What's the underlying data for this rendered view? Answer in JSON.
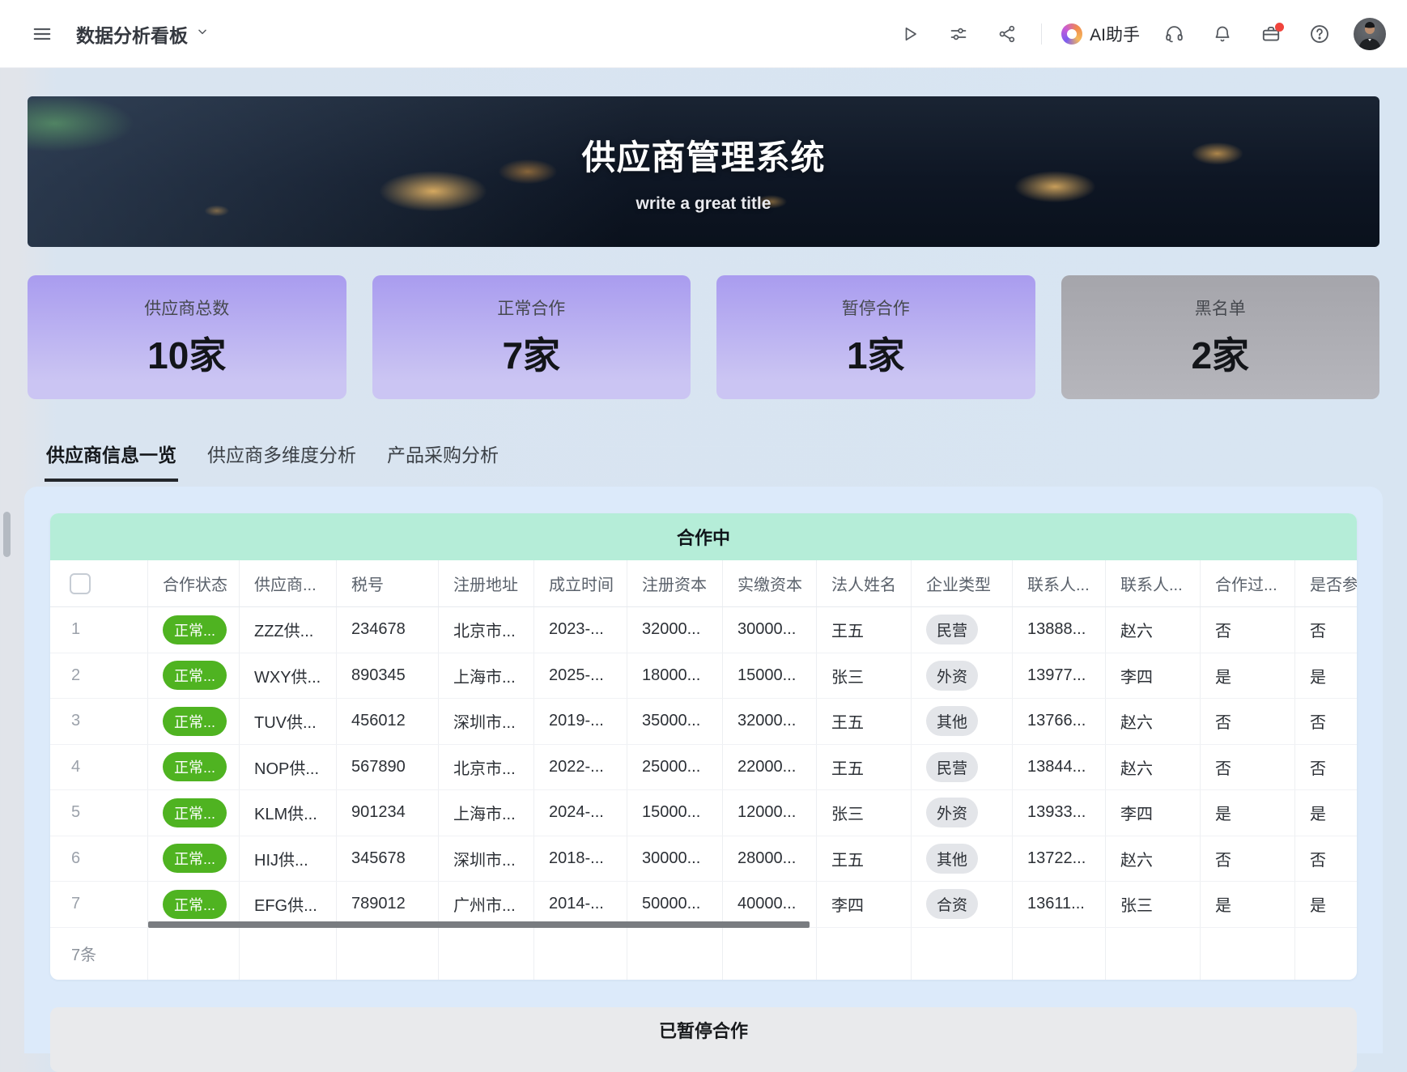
{
  "topbar": {
    "title": "数据分析看板",
    "ai_label": "AI助手",
    "icons": [
      "menu-icon",
      "chevron-down-icon",
      "play-icon",
      "adjustments-icon",
      "share-icon",
      "ai-logo-icon",
      "headset-icon",
      "bell-icon",
      "briefcase-icon",
      "help-icon",
      "user-avatar"
    ]
  },
  "banner": {
    "title": "供应商管理系统",
    "subtitle": "write a great title"
  },
  "stats": {
    "cards": [
      {
        "label": "供应商总数",
        "value": "10家",
        "theme": "purple"
      },
      {
        "label": "正常合作",
        "value": "7家",
        "theme": "purple"
      },
      {
        "label": "暂停合作",
        "value": "1家",
        "theme": "purple"
      },
      {
        "label": "黑名单",
        "value": "2家",
        "theme": "gray"
      }
    ]
  },
  "tabs": [
    {
      "label": "供应商信息一览",
      "active": true
    },
    {
      "label": "供应商多维度分析",
      "active": false
    },
    {
      "label": "产品采购分析",
      "active": false
    }
  ],
  "cooperating_table": {
    "section_title": "合作中",
    "columns": [
      "",
      "合作状态",
      "供应商...",
      "税号",
      "注册地址",
      "成立时间",
      "注册资本",
      "实缴资本",
      "法人姓名",
      "企业类型",
      "联系人...",
      "联系人...",
      "合作过...",
      "是否参..."
    ],
    "rows": [
      {
        "num": "1",
        "status": "正常...",
        "supplier": "ZZZ供...",
        "tax_id": "234678",
        "address": "北京市...",
        "founded": "2023-...",
        "reg_capital": "32000...",
        "paid_capital": "30000...",
        "legal_person": "王五",
        "company_type": "民营",
        "contact_phone": "13888...",
        "contact_name": "赵六",
        "history": "否",
        "participate": "否"
      },
      {
        "num": "2",
        "status": "正常...",
        "supplier": "WXY供...",
        "tax_id": "890345",
        "address": "上海市...",
        "founded": "2025-...",
        "reg_capital": "18000...",
        "paid_capital": "15000...",
        "legal_person": "张三",
        "company_type": "外资",
        "contact_phone": "13977...",
        "contact_name": "李四",
        "history": "是",
        "participate": "是"
      },
      {
        "num": "3",
        "status": "正常...",
        "supplier": "TUV供...",
        "tax_id": "456012",
        "address": "深圳市...",
        "founded": "2019-...",
        "reg_capital": "35000...",
        "paid_capital": "32000...",
        "legal_person": "王五",
        "company_type": "其他",
        "contact_phone": "13766...",
        "contact_name": "赵六",
        "history": "否",
        "participate": "否"
      },
      {
        "num": "4",
        "status": "正常...",
        "supplier": "NOP供...",
        "tax_id": "567890",
        "address": "北京市...",
        "founded": "2022-...",
        "reg_capital": "25000...",
        "paid_capital": "22000...",
        "legal_person": "王五",
        "company_type": "民营",
        "contact_phone": "13844...",
        "contact_name": "赵六",
        "history": "否",
        "participate": "否"
      },
      {
        "num": "5",
        "status": "正常...",
        "supplier": "KLM供...",
        "tax_id": "901234",
        "address": "上海市...",
        "founded": "2024-...",
        "reg_capital": "15000...",
        "paid_capital": "12000...",
        "legal_person": "张三",
        "company_type": "外资",
        "contact_phone": "13933...",
        "contact_name": "李四",
        "history": "是",
        "participate": "是"
      },
      {
        "num": "6",
        "status": "正常...",
        "supplier": "HIJ供...",
        "tax_id": "345678",
        "address": "深圳市...",
        "founded": "2018-...",
        "reg_capital": "30000...",
        "paid_capital": "28000...",
        "legal_person": "王五",
        "company_type": "其他",
        "contact_phone": "13722...",
        "contact_name": "赵六",
        "history": "否",
        "participate": "否"
      },
      {
        "num": "7",
        "status": "正常...",
        "supplier": "EFG供...",
        "tax_id": "789012",
        "address": "广州市...",
        "founded": "2014-...",
        "reg_capital": "50000...",
        "paid_capital": "40000...",
        "legal_person": "李四",
        "company_type": "合资",
        "contact_phone": "13611...",
        "contact_name": "张三",
        "history": "是",
        "participate": "是"
      }
    ],
    "footer_count": "7条"
  },
  "paused_section": {
    "title": "已暂停合作"
  },
  "theme": {
    "accent_purple": "#a99cef",
    "accent_purple_light": "#cbc5f3",
    "card_gray": "#a5a5ab",
    "card_gray_light": "#b6b6bc",
    "table_header_green": "#b5edd8",
    "badge_green": "#4fb321",
    "pill_gray": "#e3e5e9",
    "notification_red": "#f0443c"
  }
}
